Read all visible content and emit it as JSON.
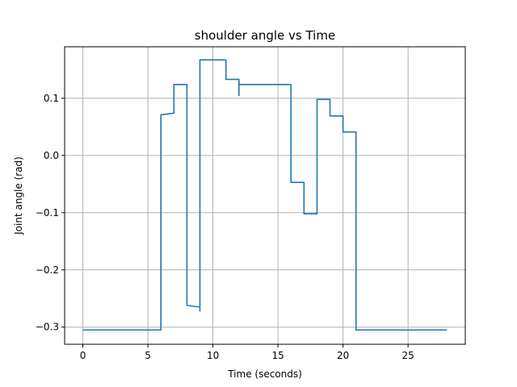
{
  "chart_data": {
    "type": "line",
    "title": "shoulder angle vs Time",
    "xlabel": "Time (seconds)",
    "ylabel": "Joint angle (rad)",
    "xlim": [
      -1.4,
      29.4
    ],
    "ylim": [
      -0.33,
      0.19
    ],
    "xticks": [
      0,
      5,
      10,
      15,
      20,
      25
    ],
    "xtick_labels": [
      "0",
      "5",
      "10",
      "15",
      "20",
      "25"
    ],
    "yticks": [
      -0.3,
      -0.2,
      -0.1,
      0.0,
      0.1
    ],
    "ytick_labels": [
      "−0.3",
      "−0.2",
      "−0.1",
      "0.0",
      "0.1"
    ],
    "grid": true,
    "series": [
      {
        "color": "#1f77b4",
        "x": [
          0,
          1,
          1,
          2,
          2,
          3,
          3,
          4,
          4,
          5,
          5,
          6,
          6,
          7,
          7,
          8,
          8,
          9,
          9,
          9,
          10,
          10,
          11,
          11,
          12,
          12,
          12,
          13,
          13,
          14,
          14,
          15,
          15,
          16,
          16,
          17,
          17,
          18,
          18,
          19,
          19,
          20,
          20,
          21,
          21,
          22,
          22,
          23,
          23,
          24,
          24,
          25,
          25,
          26,
          26,
          27,
          27,
          28
        ],
        "y": [
          -0.305,
          -0.305,
          -0.305,
          -0.305,
          -0.305,
          -0.305,
          -0.305,
          -0.305,
          -0.305,
          -0.305,
          -0.305,
          -0.305,
          0.071,
          0.074,
          0.124,
          0.124,
          -0.262,
          -0.265,
          -0.272,
          0.167,
          0.167,
          0.167,
          0.167,
          0.133,
          0.133,
          0.105,
          0.124,
          0.124,
          0.124,
          0.124,
          0.124,
          0.124,
          0.124,
          0.124,
          -0.047,
          -0.047,
          -0.102,
          -0.102,
          0.098,
          0.098,
          0.069,
          0.069,
          0.041,
          0.041,
          -0.305,
          -0.305,
          -0.305,
          -0.305,
          -0.305,
          -0.305,
          -0.305,
          -0.305,
          -0.305,
          -0.305,
          -0.305,
          -0.305,
          -0.305,
          -0.305
        ]
      }
    ]
  }
}
